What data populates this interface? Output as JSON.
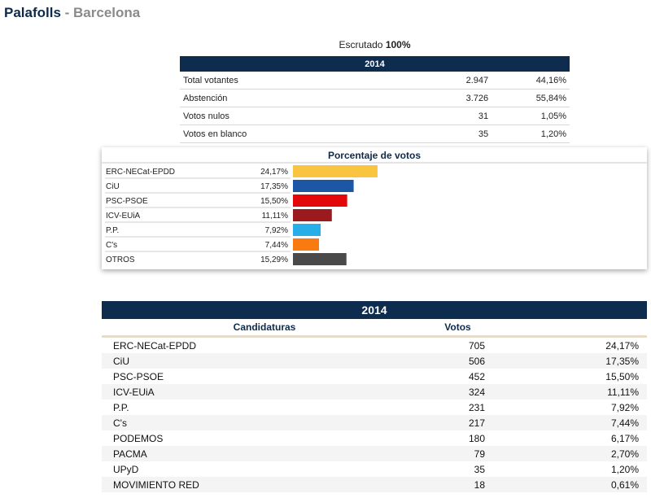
{
  "header": {
    "place": "Palafolls",
    "separator": " - ",
    "province": "Barcelona"
  },
  "scrutiny": {
    "label": "Escrutado",
    "value": "100%"
  },
  "summary": {
    "year": "2014",
    "rows": [
      {
        "label": "Total votantes",
        "value": "2.947",
        "pct": "44,16%"
      },
      {
        "label": "Abstención",
        "value": "3.726",
        "pct": "55,84%"
      },
      {
        "label": "Votos nulos",
        "value": "31",
        "pct": "1,05%"
      },
      {
        "label": "Votos en blanco",
        "value": "35",
        "pct": "1,20%"
      }
    ]
  },
  "chart_data": {
    "type": "bar",
    "orientation": "horizontal",
    "title": "Porcentaje de votos",
    "categories": [
      "ERC-NECat-EPDD",
      "CiU",
      "PSC-PSOE",
      "ICV-EUiA",
      "P.P.",
      "C's",
      "OTROS"
    ],
    "values": [
      24.17,
      17.35,
      15.5,
      11.11,
      7.92,
      7.44,
      15.29
    ],
    "value_labels": [
      "24,17%",
      "17,35%",
      "15,50%",
      "11,11%",
      "7,92%",
      "7,44%",
      "15,29%"
    ],
    "colors": [
      "#f9c440",
      "#1c57a5",
      "#e3090b",
      "#9b1a1e",
      "#27aee9",
      "#fa7a12",
      "#4a4a4a"
    ],
    "xlim": [
      0,
      100
    ],
    "grid": false,
    "legend": "none"
  },
  "results": {
    "year": "2014",
    "col_party": "Candidaturas",
    "col_votes": "Votos",
    "rows": [
      {
        "party": "ERC-NECat-EPDD",
        "votes": "705",
        "pct": "24,17%"
      },
      {
        "party": "CiU",
        "votes": "506",
        "pct": "17,35%"
      },
      {
        "party": "PSC-PSOE",
        "votes": "452",
        "pct": "15,50%"
      },
      {
        "party": "ICV-EUiA",
        "votes": "324",
        "pct": "11,11%"
      },
      {
        "party": "P.P.",
        "votes": "231",
        "pct": "7,92%"
      },
      {
        "party": "C's",
        "votes": "217",
        "pct": "7,44%"
      },
      {
        "party": "PODEMOS",
        "votes": "180",
        "pct": "6,17%"
      },
      {
        "party": "PACMA",
        "votes": "79",
        "pct": "2,70%"
      },
      {
        "party": "UPyD",
        "votes": "35",
        "pct": "1,20%"
      },
      {
        "party": "MOVIMIENTO RED",
        "votes": "18",
        "pct": "0,61%"
      }
    ]
  }
}
